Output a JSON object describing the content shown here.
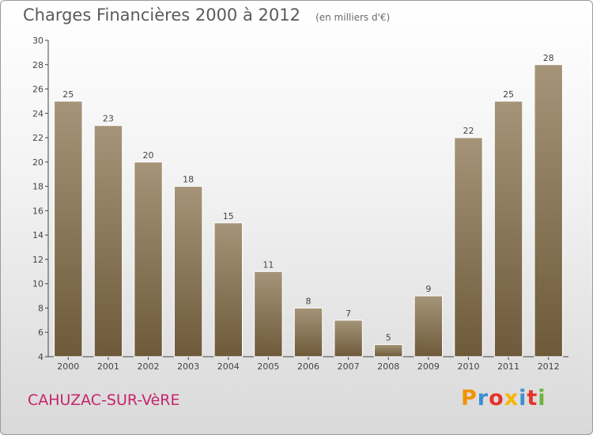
{
  "header": {
    "title": "Charges Financières 2000 à 2012",
    "unit": "(en milliers d'€)"
  },
  "footer": {
    "commune": "CAHUZAC-SUR-VèRE",
    "logo_text": "Proxiti",
    "logo_colors": [
      "#f39200",
      "#3a8fd1",
      "#e6332a",
      "#f7b500",
      "#3a8fd1",
      "#e6332a",
      "#6bb23e"
    ]
  },
  "colors": {
    "bar_top": "#a59478",
    "bar_bottom": "#6e5a3a",
    "bar_border": "#ffffff"
  },
  "chart_data": {
    "type": "bar",
    "categories": [
      "2000",
      "2001",
      "2002",
      "2003",
      "2004",
      "2005",
      "2006",
      "2007",
      "2008",
      "2009",
      "2010",
      "2011",
      "2012"
    ],
    "values": [
      25,
      23,
      20,
      18,
      15,
      11,
      8,
      7,
      5,
      9,
      22,
      25,
      28
    ],
    "title": "Charges Financières 2000 à 2012",
    "ylim": [
      4,
      30
    ],
    "yticks": [
      4,
      6,
      8,
      10,
      12,
      14,
      16,
      18,
      20,
      22,
      24,
      26,
      28,
      30
    ],
    "grid": false,
    "data_labels": true
  }
}
